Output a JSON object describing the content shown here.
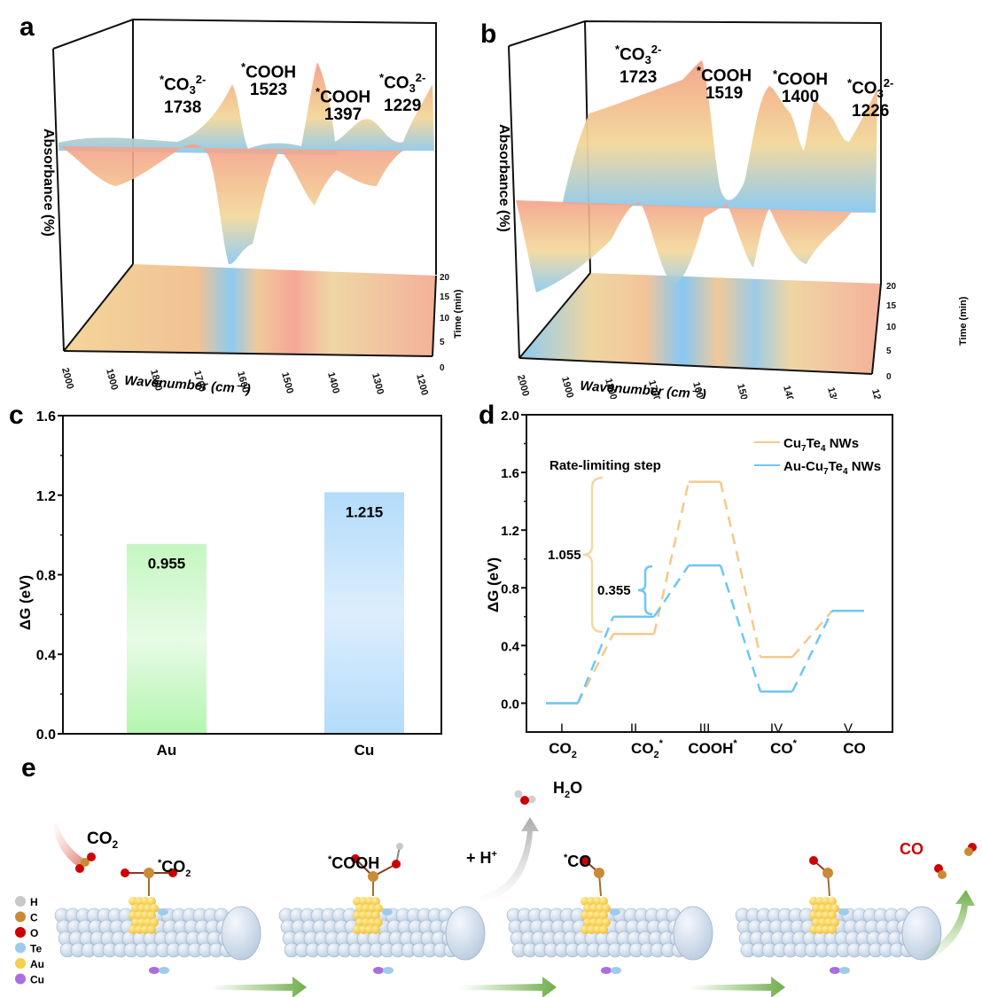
{
  "panels": {
    "a": "a",
    "b": "b",
    "c": "c",
    "d": "d",
    "e": "e"
  },
  "chart_data": [
    {
      "id": "a",
      "type": "area",
      "title": "",
      "xlabel": "Wavenumber (cm⁻¹)",
      "ylabel": "Absorbance (%)",
      "zlabel": "Time (min)",
      "xlim": [
        2000,
        1200
      ],
      "zlim": [
        0,
        20
      ],
      "x_ticks": [
        "2000",
        "1900",
        "1800",
        "1700",
        "1600",
        "1500",
        "1400",
        "1300",
        "1200"
      ],
      "z_ticks": [
        "0",
        "5",
        "10",
        "15",
        "20"
      ],
      "annotations": [
        {
          "species": "*CO₃²⁻",
          "base": "CO",
          "sub": "3",
          "sup": "2-",
          "value": "1738"
        },
        {
          "species": "*COOH",
          "base": "COOH",
          "sub": "",
          "sup": "",
          "value": "1523"
        },
        {
          "species": "*COOH",
          "base": "COOH",
          "sub": "",
          "sup": "",
          "value": "1397"
        },
        {
          "species": "*CO₃²⁻",
          "base": "CO",
          "sub": "3",
          "sup": "2-",
          "value": "1229"
        }
      ]
    },
    {
      "id": "b",
      "type": "area",
      "title": "",
      "xlabel": "Wavenumber (cm⁻¹)",
      "ylabel": "Absorbance (%)",
      "zlabel": "Time (min)",
      "xlim": [
        2000,
        1200
      ],
      "zlim": [
        0,
        20
      ],
      "x_ticks": [
        "2000",
        "1900",
        "1800",
        "1700",
        "1600",
        "1500",
        "1400",
        "1300",
        "1200"
      ],
      "z_ticks": [
        "0",
        "5",
        "10",
        "15",
        "20"
      ],
      "annotations": [
        {
          "species": "*CO₃²⁻",
          "base": "CO",
          "sub": "3",
          "sup": "2-",
          "value": "1723"
        },
        {
          "species": "*COOH",
          "base": "COOH",
          "sub": "",
          "sup": "",
          "value": "1519"
        },
        {
          "species": "*COOH",
          "base": "COOH",
          "sub": "",
          "sup": "",
          "value": "1400"
        },
        {
          "species": "*CO₃²⁻",
          "base": "CO",
          "sub": "3",
          "sup": "2-",
          "value": "1226"
        }
      ]
    },
    {
      "id": "c",
      "type": "bar",
      "title": "",
      "xlabel": "",
      "ylabel": "ΔG (eV)",
      "categories": [
        "Au",
        "Cu"
      ],
      "values": [
        0.955,
        1.215
      ],
      "value_labels": [
        "0.955",
        "1.215"
      ],
      "colors": [
        "#b4f5b0",
        "#b3dcfb"
      ],
      "ylim": [
        0,
        1.6
      ],
      "y_ticks": [
        "0.0",
        "0.4",
        "0.8",
        "1.2",
        "1.6"
      ],
      "grid": false
    },
    {
      "id": "d",
      "type": "line",
      "title": "",
      "xlabel": "",
      "ylabel": "ΔG (eV)",
      "ylim": [
        -0.2,
        2.0
      ],
      "y_ticks": [
        "0.0",
        "0.4",
        "0.8",
        "1.2",
        "1.6",
        "2.0"
      ],
      "steps": [
        "I",
        "II",
        "III",
        "IV",
        "V"
      ],
      "species": [
        {
          "base": "CO",
          "sub": "2",
          "sup": ""
        },
        {
          "base": "CO",
          "sub": "2",
          "sup": "*"
        },
        {
          "base": "COOH",
          "sub": "",
          "sup": "*"
        },
        {
          "base": "CO",
          "sub": "",
          "sup": "*"
        },
        {
          "base": "CO",
          "sub": "",
          "sup": ""
        }
      ],
      "series": [
        {
          "name": "Cu7Te4 NWs",
          "legend": {
            "a": "Cu",
            "s1": "7",
            "b": "Te",
            "s2": "4",
            "c": " NWs"
          },
          "color": "#f3ca8a",
          "values": [
            0.0,
            0.48,
            1.535,
            0.32,
            0.64
          ]
        },
        {
          "name": "Au-Cu7Te4 NWs",
          "legend": {
            "a": "Au-Cu",
            "s1": "7",
            "b": "Te",
            "s2": "4",
            "c": " NWs"
          },
          "color": "#6ec6f5",
          "values": [
            0.0,
            0.6,
            0.955,
            0.08,
            0.64
          ]
        }
      ],
      "legend_position": "top-right",
      "annotations": {
        "title": "Rate-limiting step",
        "brace_large": {
          "label": "1.055",
          "color": "#f3d7a6"
        },
        "brace_small": {
          "label": "0.355",
          "color": "#6ec6f5"
        }
      }
    }
  ],
  "schematic": {
    "legend": [
      {
        "symbol": "H",
        "color": "#c8c8c8"
      },
      {
        "symbol": "C",
        "color": "#c98b35"
      },
      {
        "symbol": "O",
        "color": "#cc0000"
      },
      {
        "symbol": "Te",
        "color": "#9fcbeb"
      },
      {
        "symbol": "Au",
        "color": "#f6cf4d"
      },
      {
        "symbol": "Cu",
        "color": "#a86ee0"
      }
    ],
    "labels": {
      "co2_gas": {
        "base": "CO",
        "sub": "2"
      },
      "ads_co2": {
        "star": "*",
        "base": "CO",
        "sub": "2"
      },
      "ads_cooh": {
        "star": "*",
        "base": "COOH"
      },
      "proton": {
        "base": "+ H",
        "sup": "+"
      },
      "water": {
        "a": "H",
        "sub": "2",
        "b": "O"
      },
      "ads_co": {
        "star": "*",
        "base": "CO"
      },
      "co_product": {
        "base": "CO",
        "color": "#cc0000"
      }
    }
  }
}
